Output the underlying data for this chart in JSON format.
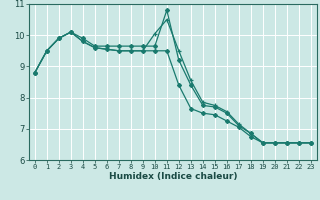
{
  "xlabel": "Humidex (Indice chaleur)",
  "x_ticks": [
    0,
    1,
    2,
    3,
    4,
    5,
    6,
    7,
    8,
    9,
    10,
    11,
    12,
    13,
    14,
    15,
    16,
    17,
    18,
    19,
    20,
    21,
    22,
    23
  ],
  "ylim": [
    6,
    11
  ],
  "yticks": [
    6,
    7,
    8,
    9,
    10,
    11
  ],
  "bg_color": "#cce8e5",
  "line_color": "#1a7a6e",
  "grid_color": "#ffffff",
  "line1": [
    8.8,
    9.5,
    9.9,
    10.1,
    9.9,
    9.65,
    9.65,
    9.65,
    9.65,
    9.65,
    9.65,
    10.8,
    9.2,
    8.4,
    7.75,
    7.7,
    7.5,
    7.1,
    6.85,
    6.55,
    6.55,
    6.55,
    6.55,
    6.55
  ],
  "line2": [
    8.8,
    9.5,
    9.9,
    10.1,
    9.8,
    9.6,
    9.55,
    9.5,
    9.5,
    9.5,
    10.05,
    10.5,
    9.5,
    8.55,
    7.85,
    7.75,
    7.55,
    7.15,
    6.85,
    6.55,
    6.55,
    6.55,
    6.55,
    6.55
  ],
  "line3": [
    8.8,
    9.5,
    9.9,
    10.1,
    9.8,
    9.6,
    9.55,
    9.5,
    9.5,
    9.5,
    9.5,
    9.5,
    8.4,
    7.65,
    7.5,
    7.45,
    7.25,
    7.05,
    6.75,
    6.55,
    6.55,
    6.55,
    6.55,
    6.55
  ]
}
